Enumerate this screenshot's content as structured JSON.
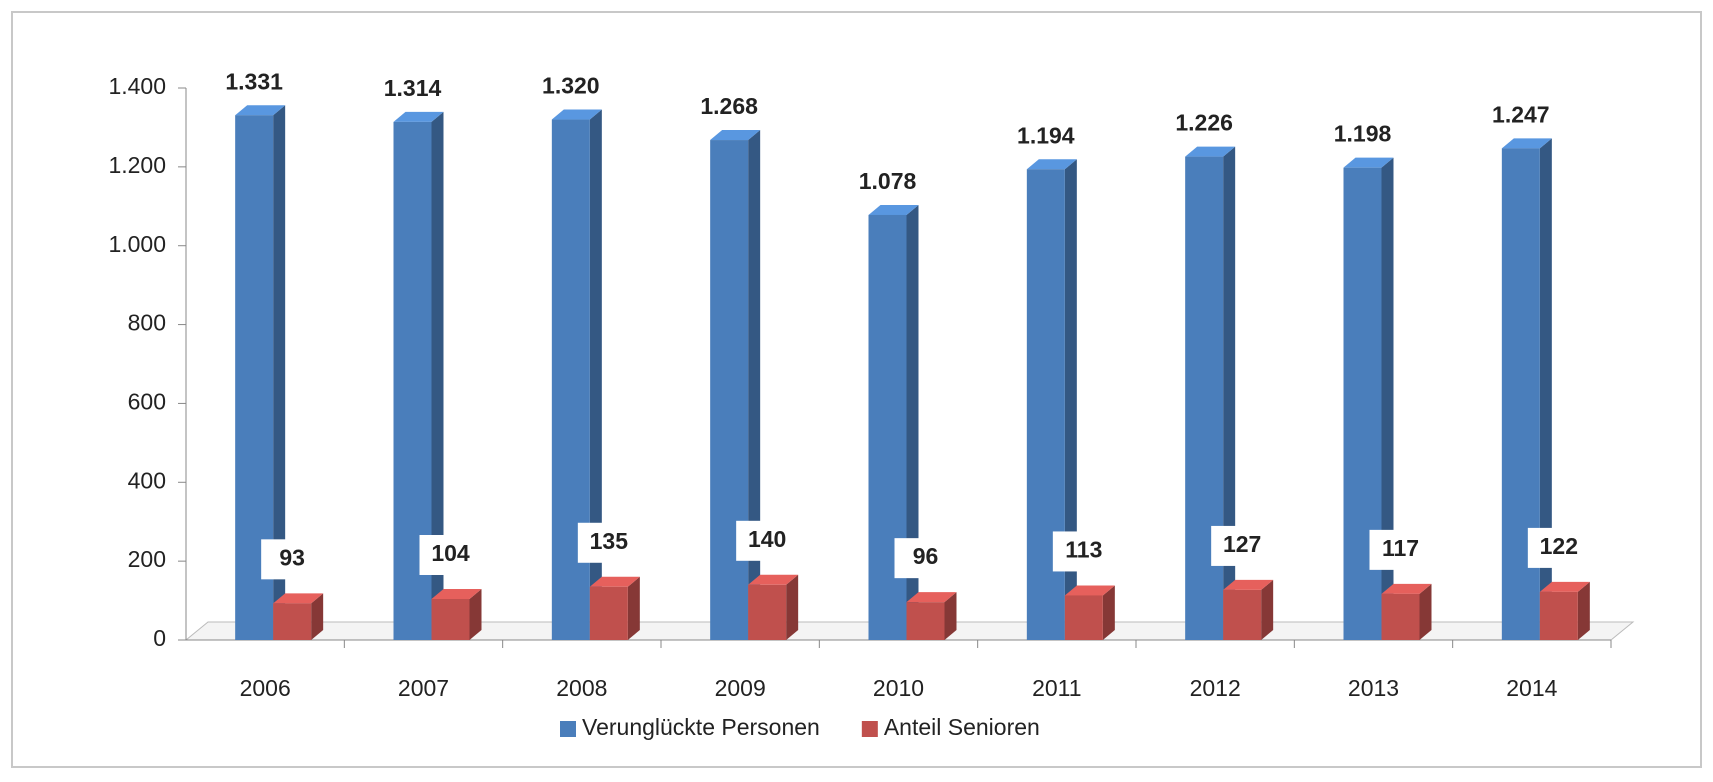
{
  "chart_data": {
    "type": "bar3d",
    "categories": [
      "2006",
      "2007",
      "2008",
      "2009",
      "2010",
      "2011",
      "2012",
      "2013",
      "2014"
    ],
    "series": [
      {
        "name": "Verunglückte Personen",
        "color": "#4a7ebb",
        "values": [
          1331,
          1314,
          1320,
          1268,
          1078,
          1194,
          1226,
          1198,
          1247
        ],
        "value_labels": [
          "1.331",
          "1.314",
          "1.320",
          "1.268",
          "1.078",
          "1.194",
          "1.226",
          "1.198",
          "1.247"
        ]
      },
      {
        "name": "Anteil Senioren",
        "color": "#c0504d",
        "values": [
          93,
          104,
          135,
          140,
          96,
          113,
          127,
          117,
          122
        ]
      }
    ],
    "ylim": [
      0,
      1400
    ],
    "yticks": [
      0,
      200,
      400,
      600,
      800,
      {
        "value": 1000,
        "label": "1.000"
      },
      {
        "value": 1200,
        "label": "1.200"
      },
      {
        "value": 1400,
        "label": "1.400"
      }
    ],
    "legend": "bottom"
  }
}
